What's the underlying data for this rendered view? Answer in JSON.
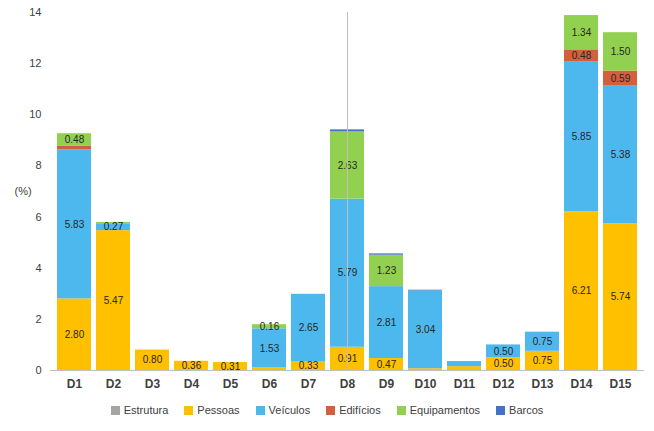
{
  "chart_data": {
    "type": "bar",
    "stacked": true,
    "data_labels": true,
    "grid": false,
    "legend": "bottom",
    "y_label": "(%)",
    "categories": [
      "D1",
      "D2",
      "D3",
      "D4",
      "D5",
      "D6",
      "D7",
      "D8",
      "D9",
      "D10",
      "D11",
      "D12",
      "D13",
      "D14",
      "D15"
    ],
    "ylim": [
      0,
      14
    ],
    "yticks": [
      0,
      2,
      4,
      6,
      8,
      10,
      12,
      14
    ],
    "series": [
      {
        "name": "Estrutura",
        "color": "#a5a5a5",
        "values": [
          0,
          0,
          0,
          0,
          0,
          0,
          0,
          0,
          0,
          0,
          0,
          0,
          0,
          0,
          0
        ],
        "value_labels": [
          null,
          null,
          null,
          null,
          null,
          null,
          null,
          null,
          null,
          null,
          null,
          null,
          null,
          null,
          null
        ]
      },
      {
        "name": "Pessoas",
        "color": "#ffc000",
        "values": [
          2.8,
          5.47,
          0.8,
          0.36,
          0.31,
          0.1,
          0.33,
          0.91,
          0.47,
          0.07,
          0.15,
          0.5,
          0.75,
          6.21,
          5.74
        ],
        "value_labels": [
          "2.80",
          "5.47",
          "0.80",
          "0.36",
          "0.31",
          null,
          "0.33",
          "0.91",
          "0.47",
          null,
          null,
          "0.50",
          "0.75",
          "6.21",
          "5.74"
        ]
      },
      {
        "name": "Veículos",
        "color": "#4db8ee",
        "values": [
          5.83,
          0.27,
          0,
          0,
          0,
          1.53,
          2.65,
          5.79,
          2.81,
          3.04,
          0.2,
          0.5,
          0.75,
          5.85,
          5.38
        ],
        "value_labels": [
          "5.83",
          "0.27",
          null,
          null,
          null,
          "1.53",
          "2.65",
          "5.79",
          "2.81",
          "3.04",
          null,
          "0.50",
          "0.75",
          "5.85",
          "5.38"
        ]
      },
      {
        "name": "Edifícios",
        "color": "#d2603c",
        "values": [
          0.15,
          0,
          0,
          0,
          0,
          0,
          0,
          0,
          0,
          0,
          0,
          0,
          0,
          0.48,
          0.59
        ],
        "value_labels": [
          null,
          null,
          null,
          null,
          null,
          null,
          null,
          null,
          null,
          null,
          null,
          null,
          null,
          "0.48",
          "0.59"
        ]
      },
      {
        "name": "Equipamentos",
        "color": "#92d050",
        "values": [
          0.48,
          0.05,
          0,
          0,
          0,
          0.16,
          0,
          2.63,
          1.23,
          0,
          0,
          0,
          0,
          1.34,
          1.5
        ],
        "value_labels": [
          "0.48",
          null,
          null,
          null,
          null,
          "0.16",
          null,
          "2.63",
          "1.23",
          null,
          null,
          null,
          null,
          "1.34",
          "1.50"
        ]
      },
      {
        "name": "Barcos",
        "color": "#4472c4",
        "values": [
          0,
          0,
          0,
          0,
          0,
          0,
          0,
          0.08,
          0.05,
          0.03,
          0,
          0,
          0,
          0,
          0
        ],
        "value_labels": [
          null,
          null,
          null,
          null,
          null,
          null,
          null,
          null,
          null,
          null,
          null,
          null,
          null,
          null,
          null
        ]
      }
    ]
  }
}
